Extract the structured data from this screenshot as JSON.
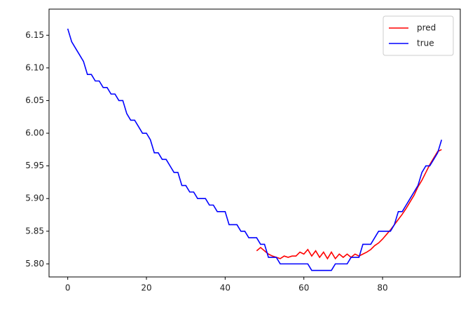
{
  "chart_data": {
    "type": "line",
    "x": [
      0,
      1,
      2,
      3,
      4,
      5,
      6,
      7,
      8,
      9,
      10,
      11,
      12,
      13,
      14,
      15,
      16,
      17,
      18,
      19,
      20,
      21,
      22,
      23,
      24,
      25,
      26,
      27,
      28,
      29,
      30,
      31,
      32,
      33,
      34,
      35,
      36,
      37,
      38,
      39,
      40,
      41,
      42,
      43,
      44,
      45,
      46,
      47,
      48,
      49,
      50,
      51,
      52,
      53,
      54,
      55,
      56,
      57,
      58,
      59,
      60,
      61,
      62,
      63,
      64,
      65,
      66,
      67,
      68,
      69,
      70,
      71,
      72,
      73,
      74,
      75,
      76,
      77,
      78,
      79,
      80,
      81,
      82,
      83,
      84,
      85,
      86,
      87,
      88,
      89,
      90,
      91,
      92,
      93,
      94,
      95
    ],
    "series": [
      {
        "name": "pred",
        "color": "#ff0000",
        "values": [
          null,
          null,
          null,
          null,
          null,
          null,
          null,
          null,
          null,
          null,
          null,
          null,
          null,
          null,
          null,
          null,
          null,
          null,
          null,
          null,
          null,
          null,
          null,
          null,
          null,
          null,
          null,
          null,
          null,
          null,
          null,
          null,
          null,
          null,
          null,
          null,
          null,
          null,
          null,
          null,
          null,
          null,
          null,
          null,
          null,
          null,
          null,
          null,
          5.82,
          5.825,
          5.82,
          5.815,
          5.812,
          5.81,
          5.808,
          5.812,
          5.81,
          5.812,
          5.812,
          5.818,
          5.815,
          5.822,
          5.812,
          5.82,
          5.81,
          5.818,
          5.808,
          5.818,
          5.808,
          5.815,
          5.81,
          5.815,
          5.81,
          5.815,
          5.812,
          5.815,
          5.818,
          5.822,
          5.828,
          5.832,
          5.838,
          5.845,
          5.852,
          5.86,
          5.868,
          5.876,
          5.885,
          5.895,
          5.905,
          5.918,
          5.928,
          5.94,
          5.952,
          5.962,
          5.972,
          5.975
        ]
      },
      {
        "name": "true",
        "color": "#0000ff",
        "values": [
          6.16,
          6.14,
          6.13,
          6.12,
          6.11,
          6.09,
          6.09,
          6.08,
          6.08,
          6.07,
          6.07,
          6.06,
          6.06,
          6.05,
          6.05,
          6.03,
          6.02,
          6.02,
          6.01,
          6.0,
          6.0,
          5.99,
          5.97,
          5.97,
          5.96,
          5.96,
          5.95,
          5.94,
          5.94,
          5.92,
          5.92,
          5.91,
          5.91,
          5.9,
          5.9,
          5.9,
          5.89,
          5.89,
          5.88,
          5.88,
          5.88,
          5.86,
          5.86,
          5.86,
          5.85,
          5.85,
          5.84,
          5.84,
          5.84,
          5.83,
          5.83,
          5.81,
          5.81,
          5.81,
          5.8,
          5.8,
          5.8,
          5.8,
          5.8,
          5.8,
          5.8,
          5.8,
          5.79,
          5.79,
          5.79,
          5.79,
          5.79,
          5.79,
          5.8,
          5.8,
          5.8,
          5.8,
          5.81,
          5.81,
          5.81,
          5.83,
          5.83,
          5.83,
          5.84,
          5.85,
          5.85,
          5.85,
          5.85,
          5.86,
          5.88,
          5.88,
          5.89,
          5.9,
          5.91,
          5.92,
          5.94,
          5.95,
          5.95,
          5.96,
          5.97,
          5.99
        ]
      }
    ],
    "xlim": [
      -4.75,
      99.75
    ],
    "ylim": [
      5.78,
      6.19
    ],
    "xticks": [
      0,
      20,
      40,
      60,
      80
    ],
    "yticks": [
      {
        "value": 5.8,
        "label": "5.80"
      },
      {
        "value": 5.85,
        "label": "5.85"
      },
      {
        "value": 5.9,
        "label": "5.90"
      },
      {
        "value": 5.95,
        "label": "5.95"
      },
      {
        "value": 6.0,
        "label": "6.00"
      },
      {
        "value": 6.05,
        "label": "6.05"
      },
      {
        "value": 6.1,
        "label": "6.10"
      },
      {
        "value": 6.15,
        "label": "6.15"
      }
    ],
    "legend": "upper right"
  }
}
